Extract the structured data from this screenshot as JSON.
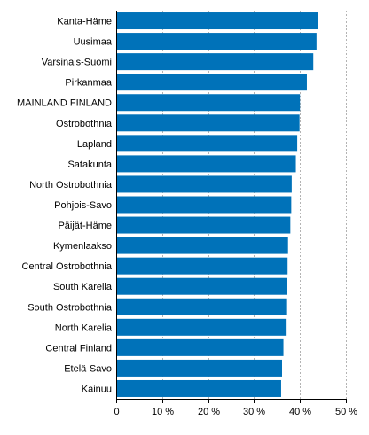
{
  "chart_data": {
    "type": "bar",
    "orientation": "horizontal",
    "title": "",
    "xlabel": "",
    "ylabel": "",
    "categories": [
      "Kanta-Häme",
      "Uusimaa",
      "Varsinais-Suomi",
      "Pirkanmaa",
      "MAINLAND FINLAND",
      "Ostrobothnia",
      "Lapland",
      "Satakunta",
      "North Ostrobothnia",
      "Pohjois-Savo",
      "Päijät-Häme",
      "Kymenlaakso",
      "Central Ostrobothnia",
      "South Karelia",
      "South Ostrobothnia",
      "North Karelia",
      "Central Finland",
      "Etelä-Savo",
      "Kainuu"
    ],
    "values": [
      44.0,
      43.6,
      42.9,
      41.5,
      40.0,
      39.9,
      39.4,
      39.1,
      38.2,
      38.1,
      37.9,
      37.4,
      37.3,
      37.1,
      37.0,
      36.9,
      36.4,
      36.1,
      35.9
    ],
    "xlim": [
      0,
      50
    ],
    "xticks": [
      0,
      10,
      20,
      30,
      40,
      50
    ],
    "xtick_labels": [
      "0",
      "10 %",
      "20 %",
      "30 %",
      "40 %",
      "50 %"
    ],
    "grid": true,
    "legend": "none",
    "bar_color": "#0072b9",
    "grid_color": "#b3b3b3"
  }
}
